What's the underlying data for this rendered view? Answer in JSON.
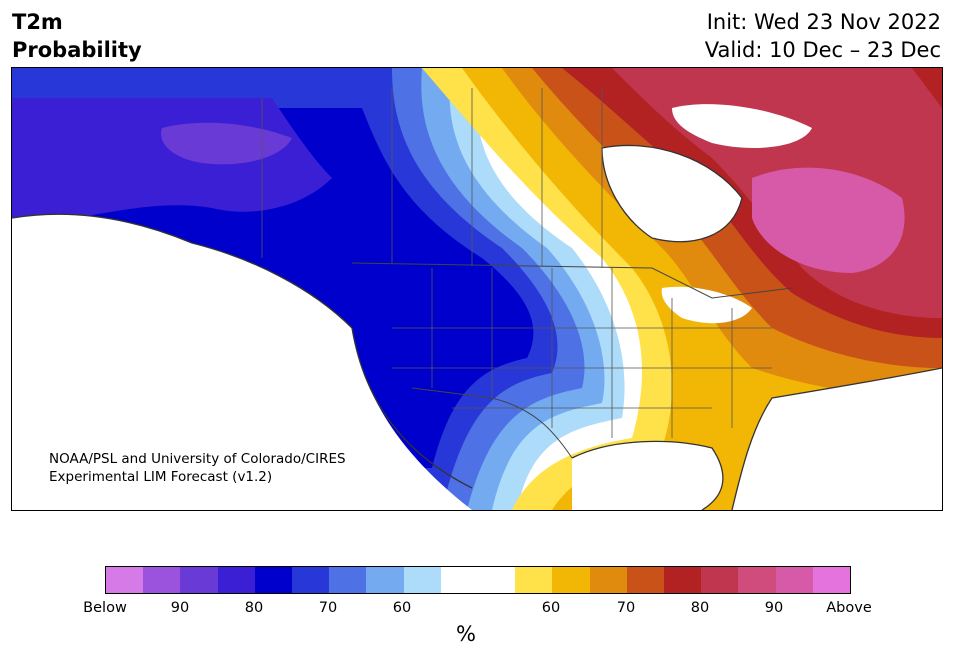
{
  "title": {
    "line1": "T2m",
    "line2": "Probability",
    "init": "Init: Wed 23 Nov 2022",
    "valid": "Valid: 10 Dec – 23 Dec"
  },
  "credit": {
    "line1": "NOAA/PSL and University of Colorado/CIRES",
    "line2": "Experimental LIM Forecast (v1.2)"
  },
  "colorbar": {
    "unit": "%",
    "ticks": [
      "Below",
      "90",
      "80",
      "70",
      "60",
      "60",
      "70",
      "80",
      "90",
      "Above"
    ],
    "colors": [
      "#d67ae8",
      "#9b52dc",
      "#6a3ad6",
      "#3a1fd4",
      "#0000cc",
      "#2838d8",
      "#4e72e6",
      "#74aaf0",
      "#acdcfa",
      "#ffffff",
      "#ffffff",
      "#ffe14a",
      "#f2b705",
      "#e08a0e",
      "#c85218",
      "#b22222",
      "#c0364e",
      "#d04c7c",
      "#d65aa8",
      "#e573de"
    ]
  },
  "map": {
    "region": "North America",
    "below_normal_colors": [
      "#0000cc",
      "#2838d8",
      "#3a1fd4",
      "#6a3ad6",
      "#74aaf0",
      "#acdcfa"
    ],
    "above_normal_colors": [
      "#ffe14a",
      "#f2b705",
      "#e08a0e",
      "#c85218",
      "#b22222",
      "#c0364e",
      "#d65aa8"
    ]
  }
}
